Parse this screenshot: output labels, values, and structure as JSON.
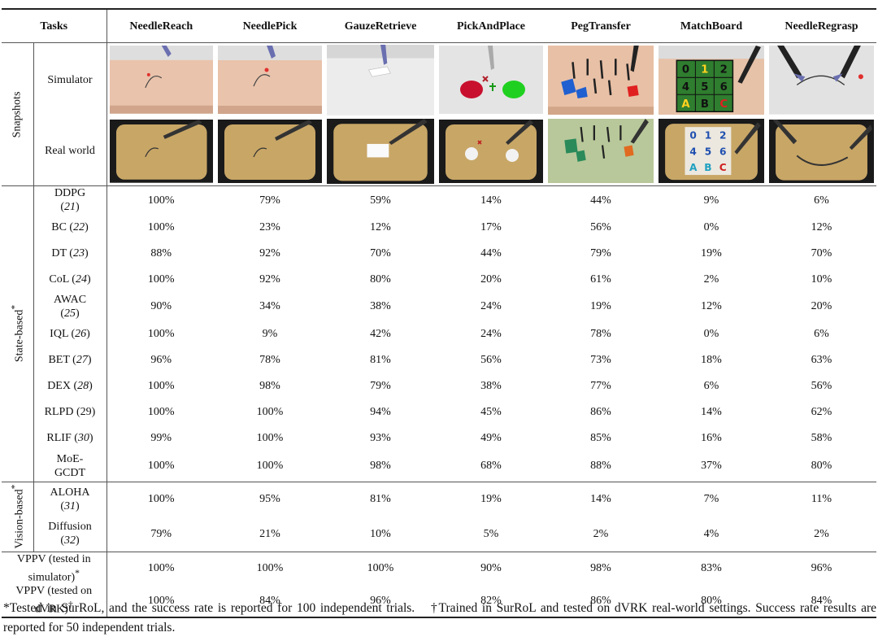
{
  "table": {
    "header": {
      "tasks_label": "Tasks",
      "tasks": [
        "NeedleReach",
        "NeedlePick",
        "GauzeRetrieve",
        "PickAndPlace",
        "PegTransfer",
        "MatchBoard",
        "NeedleRegrasp"
      ]
    },
    "snapshots": {
      "group_label": "Snapshots",
      "simulator_label": "Simulator",
      "real_label": "Real world",
      "matchboard_sim_glyphs": [
        "0",
        "1",
        "2",
        "4",
        "5",
        "6",
        "A",
        "B",
        "C"
      ]
    },
    "state_based": {
      "group_label": "State-based",
      "marker": "*",
      "rows": [
        {
          "method": "DDPG",
          "ref": "21",
          "values": [
            "100%",
            "79%",
            "59%",
            "14%",
            "44%",
            "9%",
            "6%"
          ]
        },
        {
          "method": "BC",
          "ref": "22",
          "values": [
            "100%",
            "23%",
            "12%",
            "17%",
            "56%",
            "0%",
            "12%"
          ]
        },
        {
          "method": "DT",
          "ref": "23",
          "values": [
            "88%",
            "92%",
            "70%",
            "44%",
            "79%",
            "19%",
            "70%"
          ]
        },
        {
          "method": "CoL",
          "ref": "24",
          "values": [
            "100%",
            "92%",
            "80%",
            "20%",
            "61%",
            "2%",
            "10%"
          ]
        },
        {
          "method": "AWAC",
          "ref": "25",
          "values": [
            "90%",
            "34%",
            "38%",
            "24%",
            "19%",
            "12%",
            "20%"
          ]
        },
        {
          "method": "IQL",
          "ref": "26",
          "values": [
            "100%",
            "9%",
            "42%",
            "24%",
            "78%",
            "0%",
            "6%"
          ]
        },
        {
          "method": "BET",
          "ref": "27",
          "values": [
            "96%",
            "78%",
            "81%",
            "56%",
            "73%",
            "18%",
            "63%"
          ]
        },
        {
          "method": "DEX",
          "ref": "28",
          "values": [
            "100%",
            "98%",
            "79%",
            "38%",
            "77%",
            "6%",
            "56%"
          ]
        },
        {
          "method": "RLPD",
          "ref": "29",
          "values": [
            "100%",
            "100%",
            "94%",
            "45%",
            "86%",
            "14%",
            "62%"
          ]
        },
        {
          "method": "RLIF",
          "ref": "30",
          "values": [
            "99%",
            "100%",
            "93%",
            "49%",
            "85%",
            "16%",
            "58%"
          ]
        },
        {
          "method": "MoE-GCDT",
          "ref": "",
          "values": [
            "100%",
            "100%",
            "98%",
            "68%",
            "88%",
            "37%",
            "80%"
          ]
        }
      ]
    },
    "vision_based": {
      "group_label": "Vision-based",
      "marker": "*",
      "rows": [
        {
          "method": "ALOHA",
          "ref": "31",
          "values": [
            "100%",
            "95%",
            "81%",
            "19%",
            "14%",
            "7%",
            "11%"
          ]
        },
        {
          "method": "Diffusion",
          "ref": "32",
          "values": [
            "79%",
            "21%",
            "10%",
            "5%",
            "2%",
            "4%",
            "2%"
          ]
        }
      ]
    },
    "vppv": [
      {
        "label_line1": "VPPV (tested in",
        "label_line2": "simulator)",
        "marker": "*",
        "values": [
          "100%",
          "100%",
          "100%",
          "90%",
          "98%",
          "83%",
          "96%"
        ]
      },
      {
        "label_line1": "VPPV (tested on",
        "label_line2": "dVRK)",
        "marker": "†",
        "values": [
          "100%",
          "84%",
          "96%",
          "82%",
          "86%",
          "80%",
          "84%"
        ]
      }
    ]
  },
  "footnote": {
    "note1": "*Tested in SurRoL, and the success rate is reported for 100 independent trials.",
    "note2": "†Trained in SurRoL and tested on dVRK real-world settings. Success rate results are reported for 50 independent trials."
  },
  "colors": {
    "sim_skin": "#e9c3ab",
    "sim_bg": "#dcdcdc",
    "real_tray": "#c8a666",
    "real_bg": "#1a1a1a",
    "board_green": "#2f7d2f"
  }
}
